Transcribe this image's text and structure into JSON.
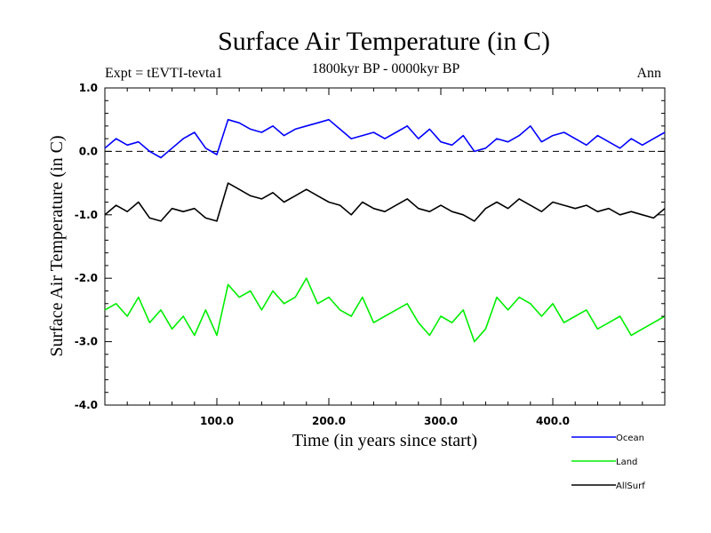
{
  "chart_data": {
    "type": "line",
    "title": "Surface Air Temperature (in C)",
    "subtitle": "1800kyr BP - 0000kyr BP",
    "experiment_label": "Expt = tEVTI-tevta1",
    "season_label": "Ann",
    "xlabel": "Time (in years since start)",
    "ylabel": "Surface Air Temperature (in C)",
    "xlim": [
      0,
      500
    ],
    "ylim": [
      -4.0,
      1.0
    ],
    "xticks": [
      100,
      200,
      300,
      400
    ],
    "xtick_labels": [
      "100.0",
      "200.0",
      "300.0",
      "400.0"
    ],
    "yticks": [
      1.0,
      0.0,
      -1.0,
      -2.0,
      -3.0,
      -4.0
    ],
    "ytick_labels": [
      "1.0",
      "0.0",
      "-1.0",
      "-2.0",
      "-3.0",
      "-4.0"
    ],
    "reference_line": 0.0,
    "legend_position": "below-right",
    "x": [
      0,
      10,
      20,
      30,
      40,
      50,
      60,
      70,
      80,
      90,
      100,
      110,
      120,
      130,
      140,
      150,
      160,
      170,
      180,
      190,
      200,
      210,
      220,
      230,
      240,
      250,
      260,
      270,
      280,
      290,
      300,
      310,
      320,
      330,
      340,
      350,
      360,
      370,
      380,
      390,
      400,
      410,
      420,
      430,
      440,
      450,
      460,
      470,
      480,
      490,
      500
    ],
    "series": [
      {
        "name": "Ocean",
        "color": "#0000ff",
        "values": [
          0.05,
          0.2,
          0.1,
          0.15,
          0.0,
          -0.1,
          0.05,
          0.2,
          0.3,
          0.05,
          -0.05,
          0.5,
          0.45,
          0.35,
          0.3,
          0.4,
          0.25,
          0.35,
          0.4,
          0.45,
          0.5,
          0.35,
          0.2,
          0.25,
          0.3,
          0.2,
          0.3,
          0.4,
          0.2,
          0.35,
          0.15,
          0.1,
          0.25,
          0.0,
          0.05,
          0.2,
          0.15,
          0.25,
          0.4,
          0.15,
          0.25,
          0.3,
          0.2,
          0.1,
          0.25,
          0.15,
          0.05,
          0.2,
          0.1,
          0.2,
          0.3
        ]
      },
      {
        "name": "Land",
        "color": "#00ee00",
        "values": [
          -2.5,
          -2.4,
          -2.6,
          -2.3,
          -2.7,
          -2.5,
          -2.8,
          -2.6,
          -2.9,
          -2.5,
          -2.9,
          -2.1,
          -2.3,
          -2.2,
          -2.5,
          -2.2,
          -2.4,
          -2.3,
          -2.0,
          -2.4,
          -2.3,
          -2.5,
          -2.6,
          -2.3,
          -2.7,
          -2.6,
          -2.5,
          -2.4,
          -2.7,
          -2.9,
          -2.6,
          -2.7,
          -2.5,
          -3.0,
          -2.8,
          -2.3,
          -2.5,
          -2.3,
          -2.4,
          -2.6,
          -2.4,
          -2.7,
          -2.6,
          -2.5,
          -2.8,
          -2.7,
          -2.6,
          -2.9,
          -2.8,
          -2.7,
          -2.6
        ]
      },
      {
        "name": "AllSurf",
        "color": "#000000",
        "values": [
          -1.0,
          -0.85,
          -0.95,
          -0.8,
          -1.05,
          -1.1,
          -0.9,
          -0.95,
          -0.9,
          -1.05,
          -1.1,
          -0.5,
          -0.6,
          -0.7,
          -0.75,
          -0.65,
          -0.8,
          -0.7,
          -0.6,
          -0.7,
          -0.8,
          -0.85,
          -1.0,
          -0.8,
          -0.9,
          -0.95,
          -0.85,
          -0.75,
          -0.9,
          -0.95,
          -0.85,
          -0.95,
          -1.0,
          -1.1,
          -0.9,
          -0.8,
          -0.9,
          -0.75,
          -0.85,
          -0.95,
          -0.8,
          -0.85,
          -0.9,
          -0.85,
          -0.95,
          -0.9,
          -1.0,
          -0.95,
          -1.0,
          -1.05,
          -0.9
        ]
      }
    ]
  }
}
